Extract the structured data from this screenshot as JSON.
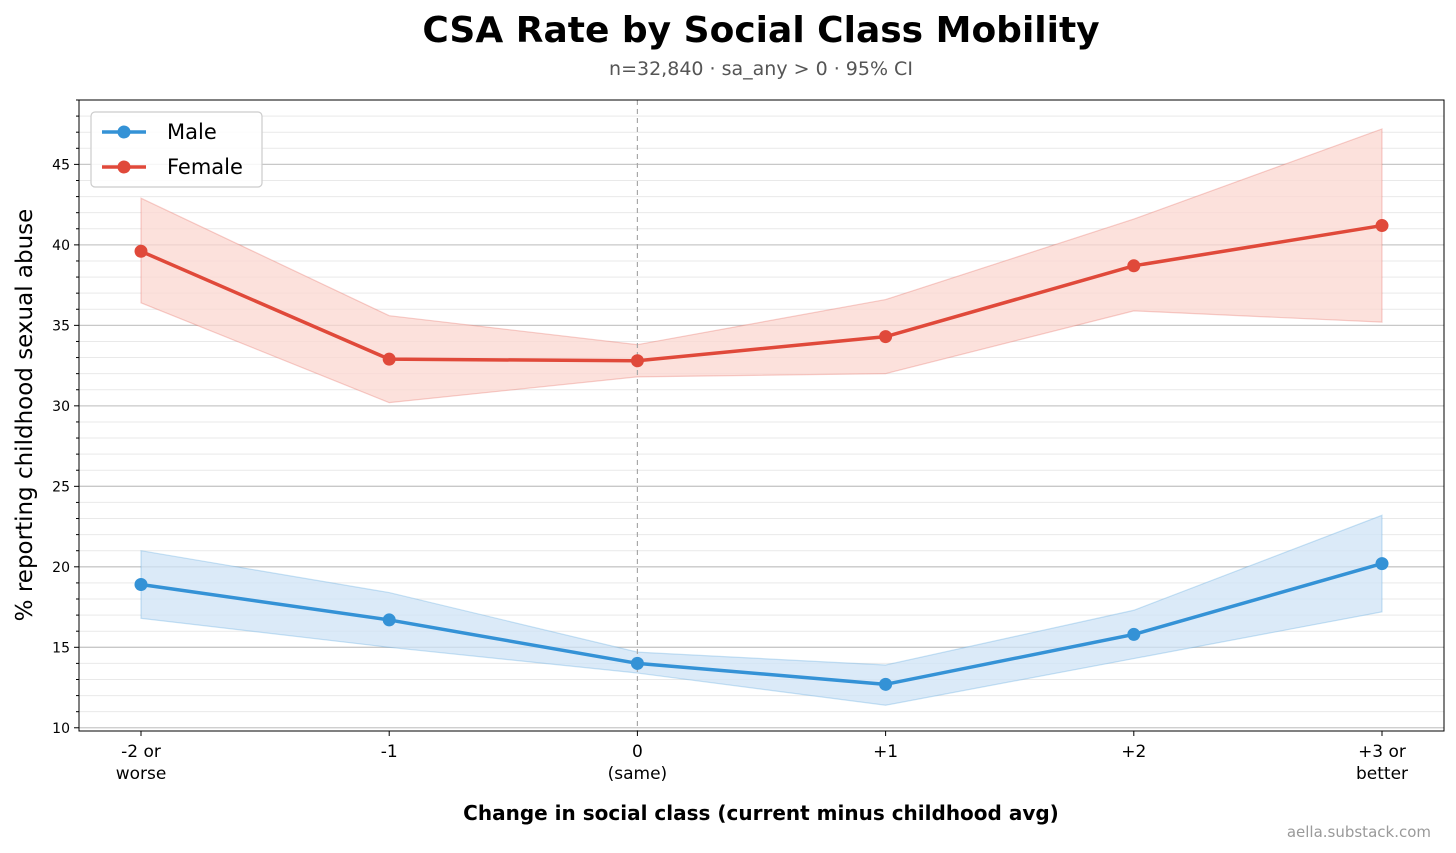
{
  "chart_data": {
    "type": "line",
    "title": "CSA Rate by Social Class Mobility",
    "subtitle": "n=32,840 · sa_any > 0 · 95% CI",
    "xlabel": "Change in social class (current minus childhood avg)",
    "ylabel": "% reporting childhood sexual abuse",
    "categories": [
      [
        "-2 or",
        "worse"
      ],
      [
        "-1"
      ],
      [
        "0",
        "(same)"
      ],
      [
        "+1"
      ],
      [
        "+2"
      ],
      [
        "+3 or",
        "better"
      ]
    ],
    "ylim": [
      9.8,
      49.0
    ],
    "yticks": [
      10,
      15,
      20,
      25,
      30,
      35,
      40,
      45
    ],
    "reference_line": {
      "x_index": 2,
      "style": "dashed"
    },
    "grid": true,
    "legend": "top-left",
    "series": [
      {
        "name": "Male",
        "color": "#3492d6",
        "band_color": "#cfe3f6",
        "values": [
          18.9,
          16.7,
          14.0,
          12.7,
          15.8,
          20.2
        ],
        "ci_lower": [
          16.8,
          15.0,
          13.4,
          11.4,
          14.3,
          17.2
        ],
        "ci_upper": [
          21.0,
          18.4,
          14.7,
          13.9,
          17.3,
          23.2
        ]
      },
      {
        "name": "Female",
        "color": "#e0493a",
        "band_color": "#fbd7d0",
        "values": [
          39.6,
          32.9,
          32.8,
          34.3,
          38.7,
          41.2
        ],
        "ci_lower": [
          36.4,
          30.2,
          31.8,
          32.0,
          35.9,
          35.2
        ],
        "ci_upper": [
          42.9,
          35.6,
          33.8,
          36.6,
          41.6,
          47.2
        ]
      }
    ]
  },
  "watermark": "aella.substack.com"
}
